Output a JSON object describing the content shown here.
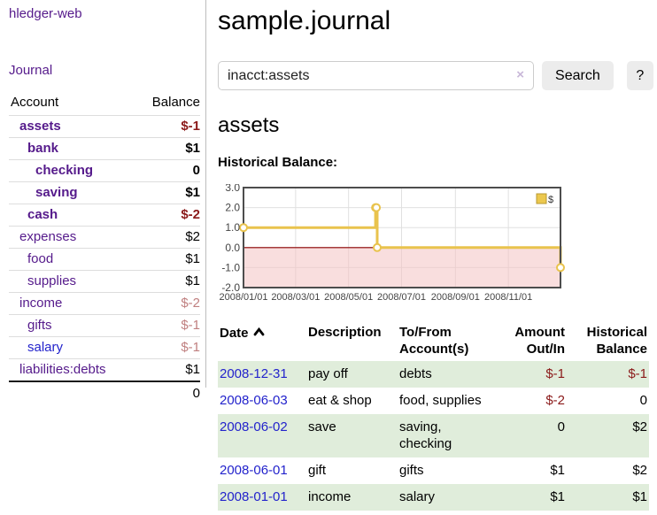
{
  "app": {
    "brand": "hledger-web"
  },
  "sidebar": {
    "journal_link": "Journal",
    "accounts_table": {
      "headers": {
        "account": "Account",
        "balance": "Balance"
      },
      "rows": [
        {
          "account": "assets",
          "balance": "$-1",
          "level": 0,
          "bold": true,
          "balance_style": "negative",
          "link_style": "purple"
        },
        {
          "account": "bank",
          "balance": "$1",
          "level": 1,
          "bold": true,
          "balance_style": "normal",
          "link_style": "purple"
        },
        {
          "account": "checking",
          "balance": "0",
          "level": 2,
          "bold": true,
          "balance_style": "normal",
          "link_style": "purple"
        },
        {
          "account": "saving",
          "balance": "$1",
          "level": 2,
          "bold": true,
          "balance_style": "normal",
          "link_style": "purple"
        },
        {
          "account": "cash",
          "balance": "$-2",
          "level": 1,
          "bold": true,
          "balance_style": "negative",
          "link_style": "purple"
        },
        {
          "account": "expenses",
          "balance": "$2",
          "level": 0,
          "bold": false,
          "balance_style": "normal",
          "link_style": "purple"
        },
        {
          "account": "food",
          "balance": "$1",
          "level": 1,
          "bold": false,
          "balance_style": "normal",
          "link_style": "purple"
        },
        {
          "account": "supplies",
          "balance": "$1",
          "level": 1,
          "bold": false,
          "balance_style": "normal",
          "link_style": "purple"
        },
        {
          "account": "income",
          "balance": "$-2",
          "level": 0,
          "bold": false,
          "balance_style": "negative-muted",
          "link_style": "purple"
        },
        {
          "account": "gifts",
          "balance": "$-1",
          "level": 1,
          "bold": false,
          "balance_style": "negative-muted",
          "link_style": "purple"
        },
        {
          "account": "salary",
          "balance": "$-1",
          "level": 1,
          "bold": false,
          "balance_style": "negative-muted",
          "link_style": "blue"
        },
        {
          "account": "liabilities:debts",
          "balance": "$1",
          "level": 0,
          "bold": false,
          "balance_style": "normal",
          "link_style": "purple"
        }
      ],
      "total": "0"
    }
  },
  "header": {
    "title": "sample.journal"
  },
  "search": {
    "value": "inacct:assets",
    "clear_icon": "×",
    "search_button": "Search",
    "help_button": "?"
  },
  "account_page": {
    "title": "assets",
    "chart_label": "Historical Balance:"
  },
  "chart_data": {
    "type": "line",
    "step": true,
    "title": "Historical Balance",
    "series": [
      {
        "name": "$",
        "points": [
          {
            "date": "2008-01-01",
            "value": 1
          },
          {
            "date": "2008-06-01",
            "value": 2
          },
          {
            "date": "2008-06-02",
            "value": 2
          },
          {
            "date": "2008-06-03",
            "value": 0
          },
          {
            "date": "2008-12-31",
            "value": -1
          }
        ]
      }
    ],
    "x_domain": [
      "2008-01-01",
      "2008-12-31"
    ],
    "y_domain": [
      -2,
      3
    ],
    "y_ticks": [
      3.0,
      2.0,
      1.0,
      0.0,
      -1.0,
      -2.0
    ],
    "x_ticks": [
      "2008/01/01",
      "2008/03/01",
      "2008/05/01",
      "2008/07/01",
      "2008/09/01",
      "2008/11/01"
    ],
    "grid": true,
    "legend_position": "top-right"
  },
  "register": {
    "headers": {
      "date": "Date",
      "description": "Description",
      "accounts": "To/From Account(s)",
      "amount": "Amount Out/In",
      "balance": "Historical Balance"
    },
    "rows": [
      {
        "date": "2008-12-31",
        "description": "pay off",
        "accounts": "debts",
        "amount": "$-1",
        "amount_negative": true,
        "balance": "$-1",
        "balance_negative": true,
        "highlight": true
      },
      {
        "date": "2008-06-03",
        "description": "eat & shop",
        "accounts": "food, supplies",
        "amount": "$-2",
        "amount_negative": true,
        "balance": "0",
        "balance_negative": false,
        "highlight": false
      },
      {
        "date": "2008-06-02",
        "description": "save",
        "accounts": "saving, checking",
        "amount": "0",
        "amount_negative": false,
        "balance": "$2",
        "balance_negative": false,
        "highlight": true
      },
      {
        "date": "2008-06-01",
        "description": "gift",
        "accounts": "gifts",
        "amount": "$1",
        "amount_negative": false,
        "balance": "$2",
        "balance_negative": false,
        "highlight": false
      },
      {
        "date": "2008-01-01",
        "description": "income",
        "accounts": "salary",
        "amount": "$1",
        "amount_negative": false,
        "balance": "$1",
        "balance_negative": false,
        "highlight": true
      }
    ]
  },
  "colors": {
    "link_purple": "#551a8b",
    "link_blue": "#2323cc",
    "negative": "#8b1a1a",
    "negative_muted": "#c08080",
    "row_highlight": "#e0eddb",
    "chart_line": "#e9c34d",
    "chart_legend_fill": "#ecc84e",
    "chart_legend_border": "#b89a33",
    "chart_negative_fill": "rgba(244,194,194,0.55)",
    "chart_zero_line": "#8b0000",
    "chart_grid": "#e0e0e0",
    "chart_border": "#4d4d4d",
    "chart_tick_text": "#444444"
  }
}
